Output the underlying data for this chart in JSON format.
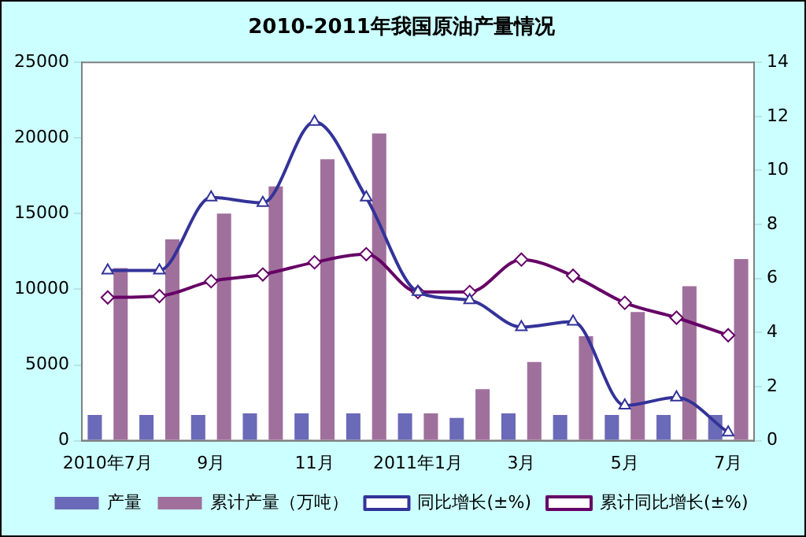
{
  "chart_data": {
    "type": "bar",
    "title": "2010-2011年我国原油产量情况",
    "categories": [
      "2010年7月",
      null,
      "9月",
      null,
      "11月",
      null,
      "2011年1月",
      null,
      "3月",
      null,
      "5月",
      null,
      "7月"
    ],
    "series": [
      {
        "name": "产量",
        "color": "#6a6ab8",
        "values": [
          1700,
          1700,
          1700,
          1800,
          1800,
          1800,
          1800,
          1500,
          1800,
          1700,
          1700,
          1700,
          1700
        ]
      },
      {
        "name": "累计产量（万吨）",
        "color": "#a0709c",
        "values": [
          11400,
          13300,
          15000,
          16800,
          18600,
          20300,
          1800,
          3400,
          5200,
          6900,
          8500,
          10200,
          12000
        ]
      },
      {
        "name": "同比增长(±%)",
        "type": "line",
        "axis": "y2",
        "marker": "triangle",
        "color": "#333399",
        "values": [
          6.3,
          6.3,
          9.0,
          8.8,
          11.8,
          9.0,
          5.5,
          5.2,
          4.2,
          4.4,
          1.3,
          1.6,
          0.3
        ]
      },
      {
        "name": "累计同比增长(±%)",
        "type": "line",
        "axis": "y2",
        "marker": "diamond",
        "color": "#660066",
        "values": [
          5.3,
          5.35,
          5.9,
          6.15,
          6.6,
          6.9,
          5.5,
          5.5,
          6.7,
          6.1,
          5.1,
          4.55,
          3.9
        ]
      }
    ],
    "ylim": [
      0,
      25000
    ],
    "yticks": [
      0,
      5000,
      10000,
      15000,
      20000,
      25000
    ],
    "y2lim": [
      0,
      14
    ],
    "y2ticks": [
      0,
      2,
      4,
      6,
      8,
      10,
      12,
      14
    ],
    "grid": false,
    "legend": "bottom"
  }
}
